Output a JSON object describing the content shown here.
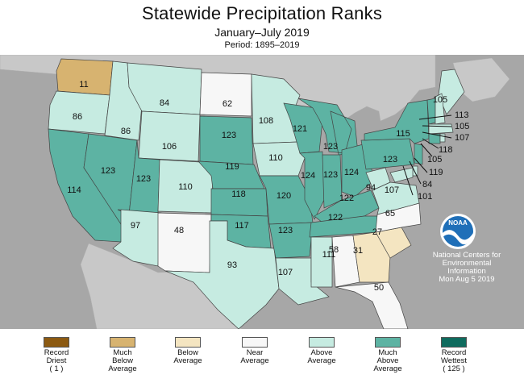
{
  "header": {
    "title": "Statewide Precipitation Ranks",
    "subtitle": "January–July 2019",
    "period": "Period: 1895–2019"
  },
  "colors": {
    "record_driest": "#8c5a12",
    "much_below": "#d7b370",
    "below": "#f4e5c1",
    "near": "#f7f7f7",
    "above": "#c6ebe1",
    "much_above": "#5db3a3",
    "record_wettest": "#0f6b5e",
    "land": "#c8c8c8",
    "water": "#a7a7a7"
  },
  "legend": [
    {
      "key": "record_driest",
      "label": "Record\nDriest\n( 1 )"
    },
    {
      "key": "much_below",
      "label": "Much\nBelow\nAverage"
    },
    {
      "key": "below",
      "label": "Below\nAverage"
    },
    {
      "key": "near",
      "label": "Near\nAverage"
    },
    {
      "key": "above",
      "label": "Above\nAverage"
    },
    {
      "key": "much_above",
      "label": "Much\nAbove\nAverage"
    },
    {
      "key": "record_wettest",
      "label": "Record\nWettest\n( 125 )"
    }
  ],
  "states": [
    {
      "name": "WA",
      "rank": "11",
      "category": "much_below"
    },
    {
      "name": "OR",
      "rank": "86",
      "category": "above"
    },
    {
      "name": "CA",
      "rank": "114",
      "category": "much_above"
    },
    {
      "name": "ID",
      "rank": "86",
      "category": "above"
    },
    {
      "name": "NV",
      "rank": "123",
      "category": "much_above"
    },
    {
      "name": "MT",
      "rank": "84",
      "category": "above"
    },
    {
      "name": "WY",
      "rank": "106",
      "category": "above"
    },
    {
      "name": "UT",
      "rank": "123",
      "category": "much_above"
    },
    {
      "name": "AZ",
      "rank": "97",
      "category": "above"
    },
    {
      "name": "CO",
      "rank": "110",
      "category": "above"
    },
    {
      "name": "NM",
      "rank": "48",
      "category": "near"
    },
    {
      "name": "ND",
      "rank": "62",
      "category": "near"
    },
    {
      "name": "SD",
      "rank": "123",
      "category": "much_above"
    },
    {
      "name": "NE",
      "rank": "119",
      "category": "much_above"
    },
    {
      "name": "KS",
      "rank": "118",
      "category": "much_above"
    },
    {
      "name": "OK",
      "rank": "117",
      "category": "much_above"
    },
    {
      "name": "TX",
      "rank": "93",
      "category": "above"
    },
    {
      "name": "MN",
      "rank": "108",
      "category": "above"
    },
    {
      "name": "IA",
      "rank": "110",
      "category": "above"
    },
    {
      "name": "MO",
      "rank": "120",
      "category": "much_above"
    },
    {
      "name": "AR",
      "rank": "123",
      "category": "much_above"
    },
    {
      "name": "LA",
      "rank": "107",
      "category": "above"
    },
    {
      "name": "WI",
      "rank": "121",
      "category": "much_above"
    },
    {
      "name": "IL",
      "rank": "124",
      "category": "much_above"
    },
    {
      "name": "MI",
      "rank": "123",
      "category": "much_above"
    },
    {
      "name": "IN",
      "rank": "123",
      "category": "much_above"
    },
    {
      "name": "OH",
      "rank": "124",
      "category": "much_above"
    },
    {
      "name": "KY",
      "rank": "122",
      "category": "much_above"
    },
    {
      "name": "TN",
      "rank": "122",
      "category": "much_above"
    },
    {
      "name": "MS",
      "rank": "111",
      "category": "above"
    },
    {
      "name": "AL",
      "rank": "58",
      "category": "near"
    },
    {
      "name": "GA",
      "rank": "31",
      "category": "below"
    },
    {
      "name": "FL",
      "rank": "50",
      "category": "near"
    },
    {
      "name": "SC",
      "rank": "27",
      "category": "below"
    },
    {
      "name": "NC",
      "rank": "65",
      "category": "near"
    },
    {
      "name": "VA",
      "rank": "107",
      "category": "above"
    },
    {
      "name": "WV",
      "rank": "94",
      "category": "above"
    },
    {
      "name": "PA",
      "rank": "123",
      "category": "much_above"
    },
    {
      "name": "NY",
      "rank": "115",
      "category": "much_above"
    },
    {
      "name": "ME",
      "rank": "105",
      "category": "above"
    },
    {
      "name": "VT",
      "rank": "113",
      "category": "much_above"
    },
    {
      "name": "NH",
      "rank": "105",
      "category": "above"
    },
    {
      "name": "MA",
      "rank": "107",
      "category": "above"
    },
    {
      "name": "CT",
      "rank": "118",
      "category": "much_above"
    },
    {
      "name": "RI",
      "rank": "105",
      "category": "above"
    },
    {
      "name": "NJ",
      "rank": "119",
      "category": "much_above"
    },
    {
      "name": "DE",
      "rank": "84",
      "category": "above"
    },
    {
      "name": "MD",
      "rank": "101",
      "category": "above"
    }
  ],
  "credit": {
    "line1": "National Centers for",
    "line2": "Environmental",
    "line3": "Information",
    "line4": "Mon Aug  5 2019",
    "logo_text": "NOAA"
  }
}
